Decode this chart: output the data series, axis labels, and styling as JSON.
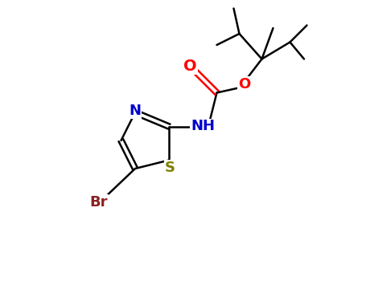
{
  "background_color": "#ffffff",
  "bond_color": "#000000",
  "N_color": "#0000cd",
  "S_color": "#808000",
  "O_color": "#ff0000",
  "Br_color": "#8b2222",
  "NH_color": "#0000cd",
  "label_N": "N",
  "label_S": "S",
  "label_O": "O",
  "label_Br": "Br",
  "label_NH": "NH",
  "figsize": [
    4.55,
    3.5
  ],
  "dpi": 100,
  "xlim": [
    0,
    10
  ],
  "ylim": [
    0,
    10
  ]
}
